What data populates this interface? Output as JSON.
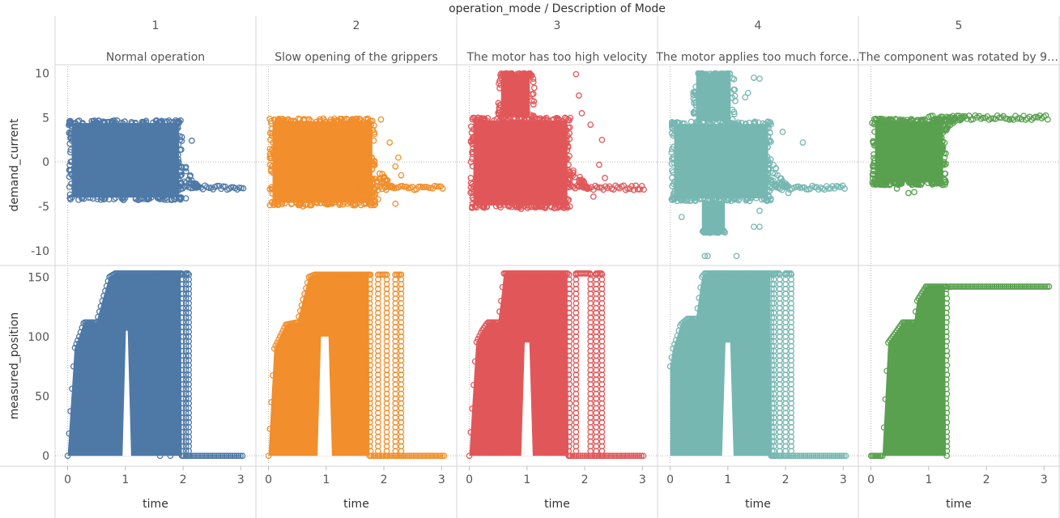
{
  "header": {
    "title": "operation_mode / Description of Mode"
  },
  "chart_data": {
    "type": "scatter",
    "title": "operation_mode / Description of Mode",
    "x_label": "time",
    "x_ticks": [
      0,
      1,
      2,
      3
    ],
    "x_range": [
      -0.05,
      3.15
    ],
    "rows": [
      {
        "ylabel": "demand_current",
        "y_ticks": [
          10,
          5,
          0,
          -5,
          -10
        ],
        "y_range": [
          -11.3,
          10.6
        ]
      },
      {
        "ylabel": "measured_position",
        "y_ticks": [
          150,
          100,
          50,
          0
        ],
        "y_range": [
          -6,
          157
        ]
      }
    ],
    "panels": [
      {
        "mode": "1",
        "description": "Normal operation",
        "color": "#4e79a7",
        "current": {
          "band": [
            0.02,
            1.98,
            -4.3,
            4.7
          ],
          "core": [
            0.1,
            1.5,
            -2.4,
            2.5
          ],
          "tail_end": 3.05,
          "tail_value": -2.9,
          "outliers": [
            [
              2.15,
              2.4
            ],
            [
              2.05,
              -4.1
            ],
            [
              0.5,
              -3.5
            ]
          ]
        },
        "position": {
          "rise": [
            [
              0.0,
              0
            ],
            [
              0.12,
              90
            ],
            [
              0.2,
              100
            ],
            [
              0.28,
              112
            ],
            [
              0.5,
              112
            ],
            [
              0.6,
              130
            ],
            [
              0.72,
              150
            ],
            [
              0.82,
              153
            ],
            [
              1.0,
              153
            ]
          ],
          "fill_to": 1.98,
          "gap": [
            0.95,
            1.1,
            105
          ],
          "edges": [
            [
              1.6,
              1.78
            ],
            [
              2.05,
              2.1
            ]
          ],
          "tail_end": 3.05
        }
      },
      {
        "mode": "2",
        "description": "Slow opening of the grippers",
        "color": "#f28e2b",
        "current": {
          "band": [
            0.02,
            1.85,
            -4.9,
            4.9
          ],
          "core": [
            0.1,
            1.5,
            -2.3,
            2.3
          ],
          "tail_end": 3.05,
          "tail_value": -2.9,
          "outliers": [
            [
              1.95,
              4.8
            ],
            [
              2.1,
              2.2
            ],
            [
              2.25,
              0.5
            ],
            [
              2.2,
              -0.5
            ],
            [
              2.3,
              -1.5
            ],
            [
              1.9,
              -4.2
            ],
            [
              2.2,
              -4.7
            ],
            [
              0.6,
              -5.0
            ]
          ]
        },
        "position": {
          "rise": [
            [
              0.0,
              0
            ],
            [
              0.1,
              90
            ],
            [
              0.2,
              100
            ],
            [
              0.3,
              110
            ],
            [
              0.5,
              112
            ],
            [
              0.62,
              135
            ],
            [
              0.7,
              150
            ],
            [
              0.8,
              152
            ],
            [
              1.0,
              152
            ]
          ],
          "fill_to": 1.75,
          "gap": [
            0.85,
            1.1,
            100
          ],
          "edges": [
            [
              1.9,
              2.05
            ],
            [
              2.2,
              2.3
            ]
          ],
          "tail_end": 3.05
        }
      },
      {
        "mode": "3",
        "description": "The motor has too high velocity",
        "color": "#e15759",
        "current": {
          "band": [
            0.02,
            1.75,
            -5.2,
            5.0
          ],
          "core": [
            0.1,
            1.5,
            -2.5,
            2.6
          ],
          "spike": [
            0.55,
            1.05,
            10.0
          ],
          "tail_end": 3.05,
          "tail_value": -2.9,
          "outliers": [
            [
              1.85,
              9.9
            ],
            [
              1.9,
              7.5
            ],
            [
              1.95,
              5.5
            ],
            [
              2.1,
              4.2
            ],
            [
              2.3,
              2.5
            ],
            [
              2.25,
              -0.3
            ],
            [
              2.35,
              -1.8
            ],
            [
              2.15,
              -3.9
            ],
            [
              0.6,
              -3.7
            ],
            [
              0.9,
              -5.3
            ]
          ]
        },
        "position": {
          "rise": [
            [
              0.0,
              0
            ],
            [
              0.12,
              95
            ],
            [
              0.22,
              105
            ],
            [
              0.32,
              112
            ],
            [
              0.5,
              112
            ],
            [
              0.55,
              130
            ],
            [
              0.6,
              153
            ],
            [
              0.8,
              153
            ],
            [
              1.0,
              153
            ]
          ],
          "fill_to": 1.72,
          "gap": [
            0.9,
            1.1,
            95
          ],
          "edges": [
            [
              1.85,
              2.1
            ],
            [
              2.2,
              2.3
            ]
          ],
          "tail_end": 3.05
        }
      },
      {
        "mode": "4",
        "description": "The motor applies too much force…",
        "color": "#76b7b2",
        "current": {
          "band": [
            0.02,
            1.75,
            -4.4,
            4.6
          ],
          "core": [
            0.1,
            1.5,
            -2.4,
            2.4
          ],
          "spike": [
            0.45,
            1.05,
            10.0
          ],
          "dip": [
            0.55,
            0.95,
            -8.0
          ],
          "tail_end": 3.05,
          "tail_value": -2.9,
          "outliers": [
            [
              1.45,
              9.5
            ],
            [
              1.55,
              9.4
            ],
            [
              1.3,
              7.3
            ],
            [
              1.35,
              7.8
            ],
            [
              1.95,
              3.4
            ],
            [
              2.3,
              2.2
            ],
            [
              2.05,
              -3.5
            ],
            [
              1.55,
              -5.5
            ],
            [
              1.45,
              -7.3
            ],
            [
              1.55,
              -7.3
            ],
            [
              0.2,
              -6.2
            ],
            [
              0.6,
              -10.6
            ],
            [
              0.65,
              -10.6
            ],
            [
              1.15,
              -10.6
            ],
            [
              0.1,
              -2.5
            ]
          ]
        },
        "position": {
          "rise": [
            [
              0.0,
              75
            ],
            [
              0.05,
              90
            ],
            [
              0.12,
              100
            ],
            [
              0.18,
              110
            ],
            [
              0.3,
              115
            ],
            [
              0.45,
              115
            ],
            [
              0.55,
              150
            ],
            [
              0.6,
              153
            ],
            [
              1.0,
              153
            ]
          ],
          "fill_to": 1.75,
          "gap": [
            0.9,
            1.1,
            95
          ],
          "edges": [
            [
              1.8,
              1.9
            ],
            [
              2.0,
              2.1
            ]
          ],
          "tail_end": 3.05
        }
      },
      {
        "mode": "5",
        "description": "The component was rotated by 9…",
        "color": "#59a14f",
        "current": {
          "band": [
            0.02,
            1.3,
            -2.6,
            4.9
          ],
          "core": [
            0.02,
            0.5,
            -2.4,
            2.5
          ],
          "tail_end": 3.1,
          "tail_value": 5.0,
          "outliers": [
            [
              0.65,
              -3.5
            ],
            [
              0.75,
              -3.4
            ],
            [
              0.45,
              -3.0
            ]
          ]
        },
        "position": {
          "rise": [
            [
              0.0,
              0
            ],
            [
              0.2,
              0
            ],
            [
              0.3,
              95
            ],
            [
              0.45,
              105
            ],
            [
              0.55,
              112
            ],
            [
              0.75,
              112
            ],
            [
              0.8,
              130
            ],
            [
              0.95,
              142
            ],
            [
              3.1,
              142
            ]
          ],
          "fill_to": 1.3,
          "gap": null,
          "edges": [],
          "tail_end": 3.1
        }
      }
    ]
  }
}
